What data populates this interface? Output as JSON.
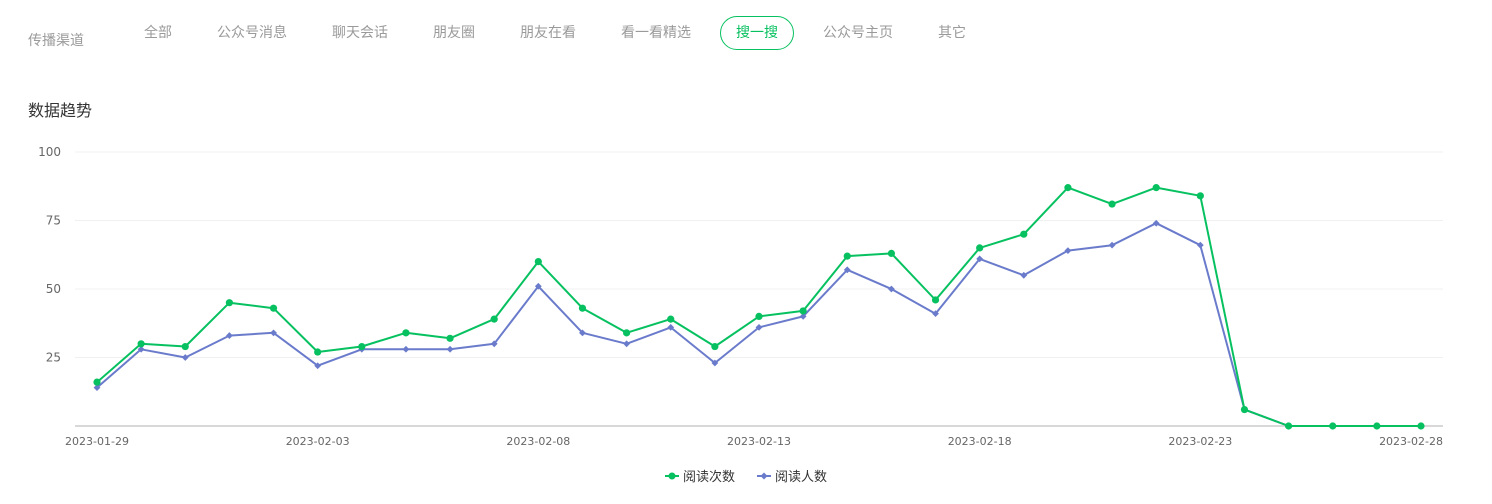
{
  "channel": {
    "label": "传播渠道",
    "tabs": [
      "全部",
      "公众号消息",
      "聊天会话",
      "朋友圈",
      "朋友在看",
      "看一看精选",
      "搜一搜",
      "公众号主页",
      "其它"
    ],
    "active_index": 6
  },
  "section_title": "数据趋势",
  "colors": {
    "reads": "#07c160",
    "readers": "#6a7bcb",
    "accent": "#07c160"
  },
  "chart_data": {
    "type": "line",
    "x": [
      "2023-01-29",
      "2023-01-30",
      "2023-01-31",
      "2023-02-01",
      "2023-02-02",
      "2023-02-03",
      "2023-02-04",
      "2023-02-05",
      "2023-02-06",
      "2023-02-07",
      "2023-02-08",
      "2023-02-09",
      "2023-02-10",
      "2023-02-11",
      "2023-02-12",
      "2023-02-13",
      "2023-02-14",
      "2023-02-15",
      "2023-02-16",
      "2023-02-17",
      "2023-02-18",
      "2023-02-19",
      "2023-02-20",
      "2023-02-21",
      "2023-02-22",
      "2023-02-23",
      "2023-02-24",
      "2023-02-25",
      "2023-02-26",
      "2023-02-27",
      "2023-02-28"
    ],
    "x_tick_labels": [
      "2023-01-29",
      "2023-02-03",
      "2023-02-08",
      "2023-02-13",
      "2023-02-18",
      "2023-02-23",
      "2023-02-28"
    ],
    "y_ticks": [
      25,
      50,
      75,
      100
    ],
    "ylim": [
      0,
      100
    ],
    "series": [
      {
        "name": "阅读次数",
        "marker": "circle",
        "values": [
          16,
          30,
          29,
          45,
          43,
          27,
          29,
          34,
          32,
          39,
          60,
          43,
          34,
          39,
          29,
          40,
          42,
          62,
          63,
          46,
          65,
          70,
          87,
          81,
          87,
          84,
          6,
          0,
          0,
          0,
          0
        ]
      },
      {
        "name": "阅读人数",
        "marker": "diamond",
        "values": [
          14,
          28,
          25,
          33,
          34,
          22,
          28,
          28,
          28,
          30,
          51,
          34,
          30,
          36,
          23,
          36,
          40,
          57,
          50,
          41,
          61,
          55,
          64,
          66,
          74,
          66,
          6,
          0,
          0,
          0,
          0
        ]
      }
    ],
    "grid": true,
    "legend_position": "bottom-center"
  }
}
